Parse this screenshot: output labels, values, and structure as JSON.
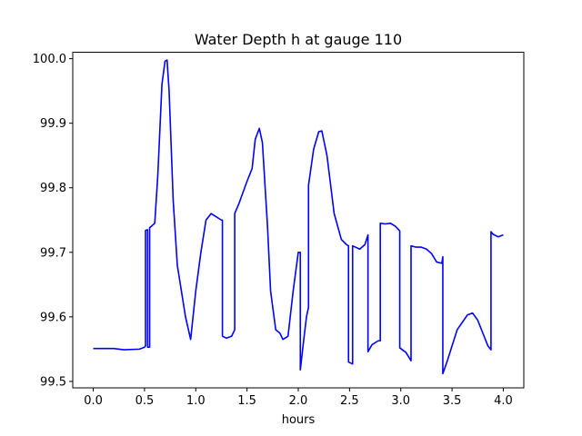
{
  "chart_data": {
    "type": "line",
    "title": "Water Depth h at gauge 110",
    "xlabel": "hours",
    "ylabel": "",
    "xlim": [
      -0.2,
      4.2
    ],
    "ylim": [
      99.49,
      100.01
    ],
    "xticks": [
      0.0,
      0.5,
      1.0,
      1.5,
      2.0,
      2.5,
      3.0,
      3.5,
      4.0
    ],
    "xtick_labels": [
      "0.0",
      "0.5",
      "1.0",
      "1.5",
      "2.0",
      "2.5",
      "3.0",
      "3.5",
      "4.0"
    ],
    "yticks": [
      99.5,
      99.6,
      99.7,
      99.8,
      99.9,
      100.0
    ],
    "ytick_labels": [
      "99.5",
      "99.6",
      "99.7",
      "99.8",
      "99.9",
      "100.0"
    ],
    "grid": false,
    "series": [
      {
        "color": "#0000ff",
        "x": [
          0.0,
          0.2,
          0.3,
          0.45,
          0.5,
          0.51,
          0.51,
          0.53,
          0.53,
          0.55,
          0.55,
          0.6,
          0.63,
          0.67,
          0.7,
          0.72,
          0.74,
          0.78,
          0.82,
          0.9,
          0.95,
          1.0,
          1.05,
          1.1,
          1.15,
          1.2,
          1.25,
          1.26,
          1.26,
          1.3,
          1.35,
          1.38,
          1.38,
          1.42,
          1.5,
          1.55,
          1.58,
          1.62,
          1.65,
          1.7,
          1.73,
          1.78,
          1.82,
          1.85,
          1.9,
          1.95,
          2.0,
          2.02,
          2.02,
          2.05,
          2.08,
          2.1,
          2.1,
          2.15,
          2.2,
          2.23,
          2.28,
          2.35,
          2.42,
          2.47,
          2.49,
          2.49,
          2.53,
          2.53,
          2.6,
          2.65,
          2.68,
          2.68,
          2.72,
          2.78,
          2.8,
          2.8,
          2.85,
          2.9,
          2.95,
          2.99,
          2.99,
          3.05,
          3.1,
          3.1,
          3.15,
          3.2,
          3.25,
          3.3,
          3.35,
          3.4,
          3.41,
          3.41,
          3.45,
          3.55,
          3.65,
          3.7,
          3.75,
          3.85,
          3.88,
          3.88,
          3.9,
          3.95,
          4.0
        ],
        "y": [
          99.551,
          99.551,
          99.549,
          99.55,
          99.553,
          99.555,
          99.734,
          99.735,
          99.553,
          99.553,
          99.738,
          99.745,
          99.82,
          99.96,
          99.996,
          99.998,
          99.95,
          99.78,
          99.68,
          99.6,
          99.565,
          99.64,
          99.7,
          99.75,
          99.76,
          99.755,
          99.75,
          99.75,
          99.57,
          99.567,
          99.57,
          99.58,
          99.76,
          99.775,
          99.81,
          99.83,
          99.875,
          99.892,
          99.87,
          99.74,
          99.64,
          99.58,
          99.575,
          99.565,
          99.57,
          99.64,
          99.7,
          99.7,
          99.518,
          99.56,
          99.6,
          99.615,
          99.804,
          99.86,
          99.887,
          99.888,
          99.85,
          99.76,
          99.72,
          99.712,
          99.71,
          99.53,
          99.527,
          99.71,
          99.705,
          99.712,
          99.727,
          99.546,
          99.557,
          99.563,
          99.563,
          99.745,
          99.744,
          99.745,
          99.74,
          99.733,
          99.552,
          99.545,
          99.532,
          99.71,
          99.708,
          99.708,
          99.705,
          99.698,
          99.685,
          99.683,
          99.693,
          99.512,
          99.53,
          99.58,
          99.603,
          99.606,
          99.595,
          99.555,
          99.549,
          99.732,
          99.728,
          99.724,
          99.727
        ]
      }
    ]
  }
}
